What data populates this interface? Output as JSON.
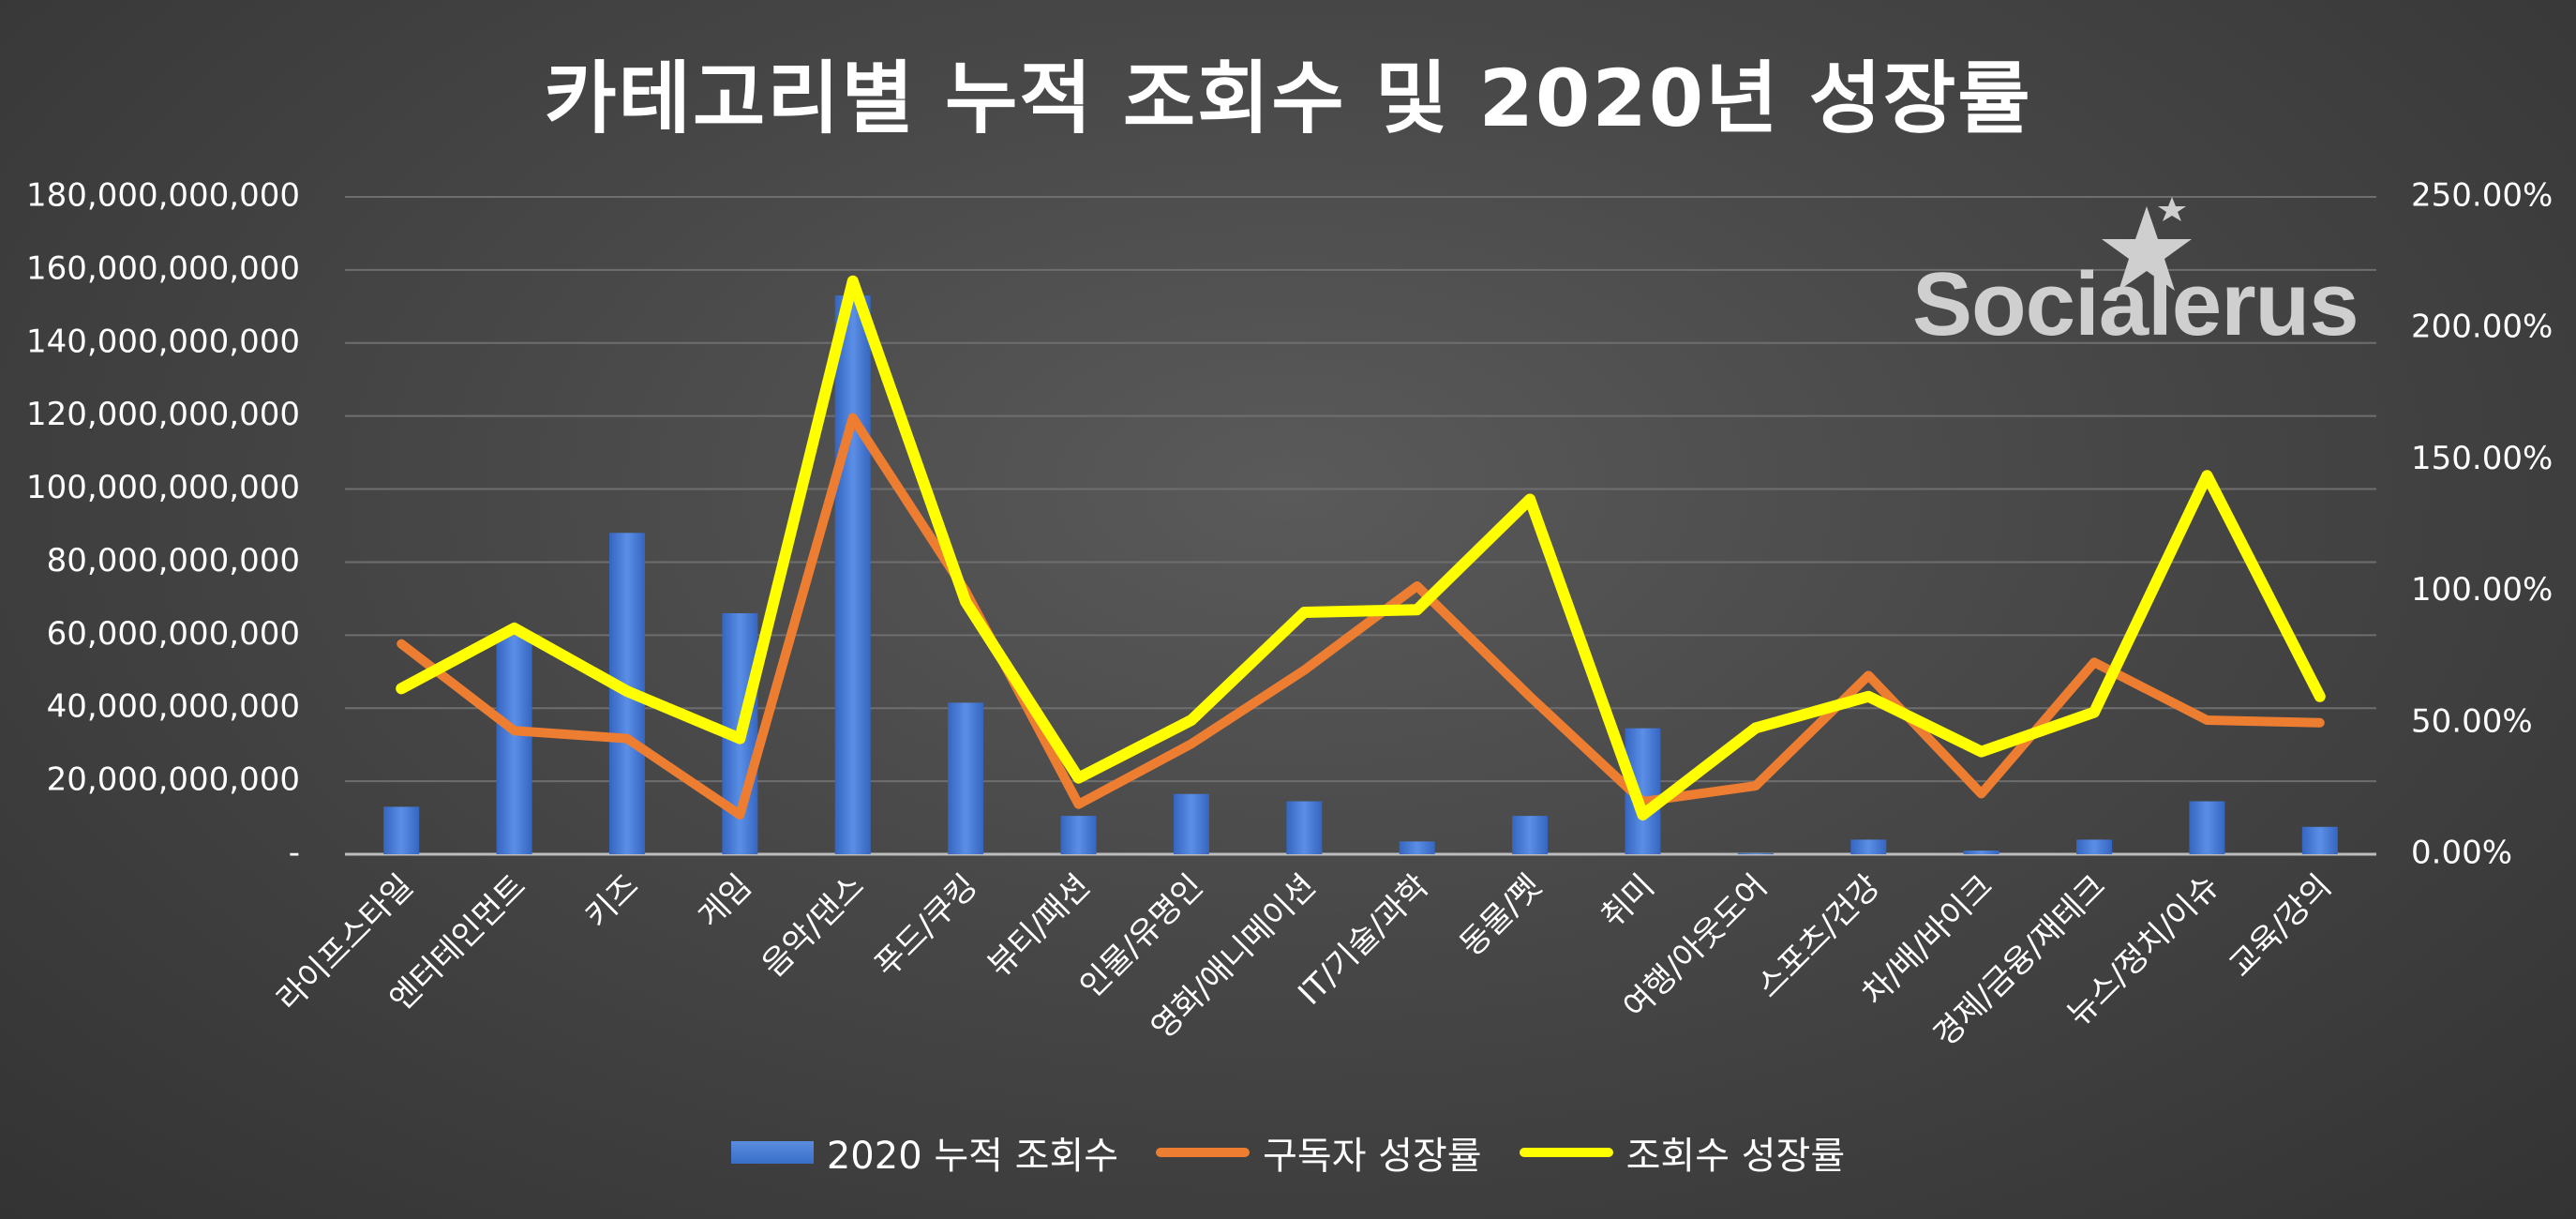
{
  "chart_data": {
    "type": "bar",
    "title": "카테고리별 누적 조회수 및 2020년 성장률",
    "categories": [
      "라이프스타일",
      "엔터테인먼트",
      "키즈",
      "게임",
      "음악/댄스",
      "푸드/쿠킹",
      "뷰티/패션",
      "인물/유명인",
      "영화/애니메이션",
      "IT/기술/과학",
      "동물/펫",
      "취미",
      "여행/아웃도어",
      "스포츠/건강",
      "차/배/바이크",
      "경제/금융/재테크",
      "뉴스/정치/이슈",
      "교육/강의"
    ],
    "series": [
      {
        "name": "2020 누적 조회수",
        "type": "bar",
        "axis": "left",
        "color": "#4a7fd8",
        "values": [
          13000000000,
          61000000000,
          88000000000,
          66000000000,
          153000000000,
          41500000000,
          10500000000,
          16500000000,
          14500000000,
          3500000000,
          10500000000,
          34500000000,
          300000000,
          4000000000,
          1000000000,
          4000000000,
          14500000000,
          7500000000
        ]
      },
      {
        "name": "구독자 성장률",
        "type": "line",
        "axis": "right",
        "color": "#ed7d31",
        "values": [
          0.8,
          0.47,
          0.44,
          0.15,
          1.66,
          1.0,
          0.19,
          0.42,
          0.7,
          1.02,
          0.6,
          0.2,
          0.26,
          0.68,
          0.23,
          0.73,
          0.51,
          0.5
        ]
      },
      {
        "name": "조회수 성장률",
        "type": "line",
        "axis": "right",
        "color": "#ffff00",
        "values": [
          0.63,
          0.86,
          0.62,
          0.44,
          2.18,
          0.96,
          0.29,
          0.51,
          0.92,
          0.93,
          1.35,
          0.15,
          0.48,
          0.6,
          0.39,
          0.54,
          1.44,
          0.6
        ]
      }
    ],
    "y_left": {
      "ylim": [
        0,
        180000000000
      ],
      "ticks": [
        "-",
        "20,000,000,000",
        "40,000,000,000",
        "60,000,000,000",
        "80,000,000,000",
        "100,000,000,000",
        "120,000,000,000",
        "140,000,000,000",
        "160,000,000,000",
        "180,000,000,000"
      ]
    },
    "y_right": {
      "ylim": [
        0,
        2.5
      ],
      "ticks": [
        "0.00%",
        "50.00%",
        "100.00%",
        "150.00%",
        "200.00%",
        "250.00%"
      ]
    },
    "grid": true,
    "legend_position": "bottom"
  },
  "watermark": {
    "text": "Socialerus"
  }
}
